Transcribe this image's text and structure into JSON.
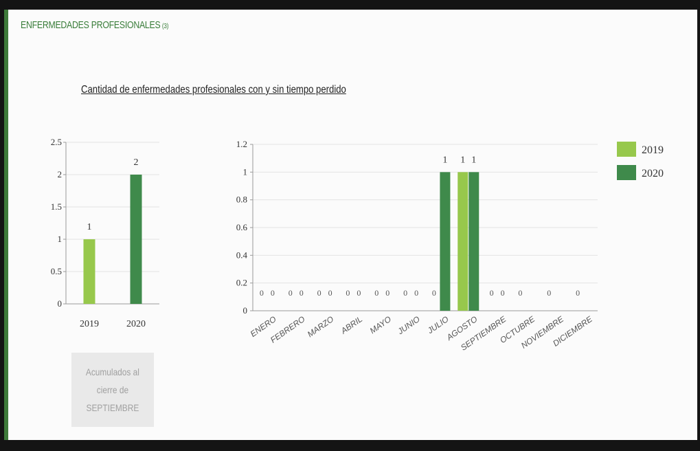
{
  "header": {
    "title": "ENFERMEDADES PROFESIONALES",
    "note": "(3)",
    "subtitle": "Cantidad de enfermedades profesionales con y sin tiempo perdido"
  },
  "footnote": {
    "line1": "Acumulados al",
    "line2": "cierre de",
    "line3": "SEPTIEMBRE"
  },
  "colors": {
    "y2019": "#97c84c",
    "y2020": "#3f8a4b",
    "accent": "#3e7a3a"
  },
  "chart_data": [
    {
      "type": "bar",
      "categories": [
        "2019",
        "2020"
      ],
      "values": [
        1,
        2
      ],
      "ylim": [
        0,
        2.5
      ],
      "yticks": [
        "0",
        "0.5",
        "1",
        "1.5",
        "2",
        "2.5"
      ],
      "data_labels": [
        "1",
        "2"
      ],
      "grid": true
    },
    {
      "type": "bar",
      "categories": [
        "ENERO",
        "FEBRERO",
        "MARZO",
        "ABRIL",
        "MAYO",
        "JUNIO",
        "JULIO",
        "AGOSTO",
        "SEPTIEMBRE",
        "OCTUBRE",
        "NOVIEMBRE",
        "DICIEMBRE"
      ],
      "series": [
        {
          "name": "2019",
          "values": [
            0,
            0,
            0,
            0,
            0,
            0,
            0,
            1,
            0,
            0,
            0,
            0
          ],
          "labels": [
            "0",
            "0",
            "0",
            "0",
            "0",
            "0",
            "0",
            "1",
            "0",
            "0",
            "0",
            "0"
          ]
        },
        {
          "name": "2020",
          "values": [
            0,
            0,
            0,
            0,
            0,
            0,
            1,
            1,
            0,
            null,
            null,
            null
          ],
          "labels": [
            "0",
            "0",
            "0",
            "0",
            "0",
            "0",
            "1",
            "1",
            "0",
            "",
            "",
            ""
          ]
        }
      ],
      "ylim": [
        0,
        1.2
      ],
      "yticks": [
        "0",
        "0.2",
        "0.4",
        "0.6",
        "0.8",
        "1",
        "1.2"
      ],
      "legend": "right",
      "grid": true
    }
  ]
}
